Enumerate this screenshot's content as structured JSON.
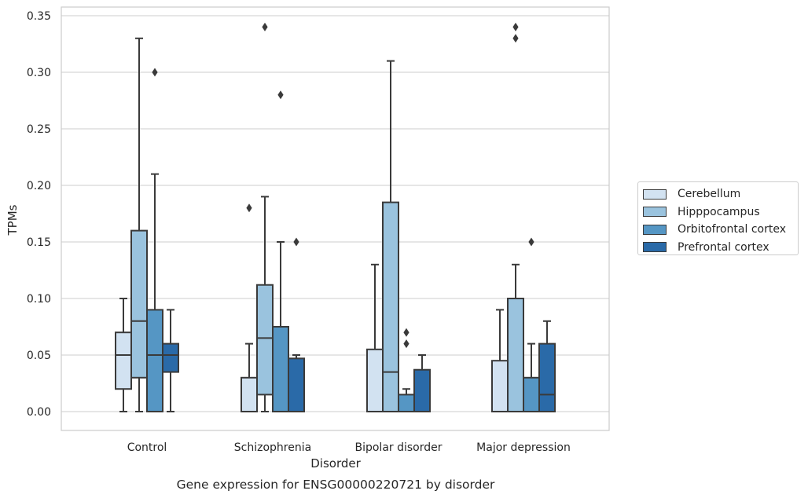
{
  "chart_data": {
    "type": "box",
    "title": "Gene expression for ENSG00000220721 by disorder",
    "xlabel": "Disorder",
    "ylabel": "TPMs",
    "ylim": [
      -0.017,
      0.356
    ],
    "yticks": [
      0.0,
      0.05,
      0.1,
      0.15,
      0.2,
      0.25,
      0.3,
      0.35
    ],
    "ytick_labels": [
      "0.00",
      "0.05",
      "0.10",
      "0.15",
      "0.20",
      "0.25",
      "0.30",
      "0.35"
    ],
    "grid": "horizontal",
    "legend_position": "right",
    "categories": [
      "Control",
      "Schizophrenia",
      "Bipolar disorder",
      "Major depression"
    ],
    "series": [
      {
        "name": "Cerebellum",
        "color": "#d2e2f1",
        "boxes": [
          {
            "whisker_low": 0.0,
            "q1": 0.02,
            "median": 0.05,
            "q3": 0.07,
            "whisker_high": 0.1,
            "outliers": []
          },
          {
            "whisker_low": 0.0,
            "q1": 0.0,
            "median": 0.0,
            "q3": 0.03,
            "whisker_high": 0.06,
            "outliers": [
              0.18
            ]
          },
          {
            "whisker_low": 0.0,
            "q1": 0.0,
            "median": 0.0,
            "q3": 0.055,
            "whisker_high": 0.13,
            "outliers": []
          },
          {
            "whisker_low": 0.0,
            "q1": 0.0,
            "median": 0.0,
            "q3": 0.045,
            "whisker_high": 0.09,
            "outliers": []
          }
        ]
      },
      {
        "name": "Hipppocampus",
        "color": "#9ac3de",
        "boxes": [
          {
            "whisker_low": 0.0,
            "q1": 0.03,
            "median": 0.08,
            "q3": 0.16,
            "whisker_high": 0.33,
            "outliers": []
          },
          {
            "whisker_low": 0.0,
            "q1": 0.015,
            "median": 0.065,
            "q3": 0.112,
            "whisker_high": 0.19,
            "outliers": [
              0.34
            ]
          },
          {
            "whisker_low": 0.0,
            "q1": 0.0,
            "median": 0.035,
            "q3": 0.185,
            "whisker_high": 0.31,
            "outliers": []
          },
          {
            "whisker_low": 0.0,
            "q1": 0.0,
            "median": 0.0,
            "q3": 0.1,
            "whisker_high": 0.13,
            "outliers": [
              0.33,
              0.34
            ]
          }
        ]
      },
      {
        "name": "Orbitofrontal cortex",
        "color": "#5596c4",
        "boxes": [
          {
            "whisker_low": 0.0,
            "q1": 0.0,
            "median": 0.05,
            "q3": 0.09,
            "whisker_high": 0.21,
            "outliers": [
              0.3
            ]
          },
          {
            "whisker_low": 0.0,
            "q1": 0.0,
            "median": 0.0,
            "q3": 0.075,
            "whisker_high": 0.15,
            "outliers": [
              0.28
            ]
          },
          {
            "whisker_low": 0.0,
            "q1": 0.0,
            "median": 0.0,
            "q3": 0.015,
            "whisker_high": 0.02,
            "outliers": [
              0.06,
              0.07
            ]
          },
          {
            "whisker_low": 0.0,
            "q1": 0.0,
            "median": 0.0,
            "q3": 0.03,
            "whisker_high": 0.06,
            "outliers": [
              0.15
            ]
          }
        ]
      },
      {
        "name": "Prefrontal cortex",
        "color": "#2a6aa8",
        "boxes": [
          {
            "whisker_low": 0.0,
            "q1": 0.035,
            "median": 0.05,
            "q3": 0.06,
            "whisker_high": 0.09,
            "outliers": []
          },
          {
            "whisker_low": 0.0,
            "q1": 0.0,
            "median": 0.0,
            "q3": 0.047,
            "whisker_high": 0.05,
            "outliers": [
              0.15
            ]
          },
          {
            "whisker_low": 0.0,
            "q1": 0.0,
            "median": 0.0,
            "q3": 0.037,
            "whisker_high": 0.05,
            "outliers": []
          },
          {
            "whisker_low": 0.0,
            "q1": 0.0,
            "median": 0.015,
            "q3": 0.06,
            "whisker_high": 0.08,
            "outliers": []
          }
        ]
      }
    ]
  }
}
